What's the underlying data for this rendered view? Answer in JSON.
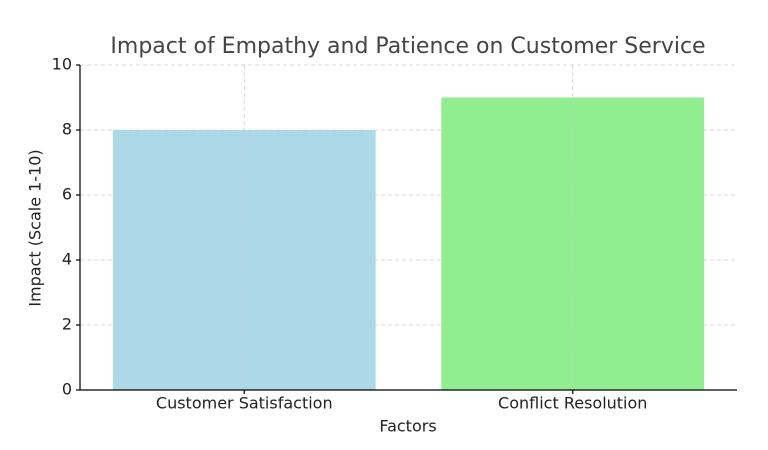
{
  "chart_data": {
    "type": "bar",
    "title": "Impact of Empathy and Patience on Customer Service",
    "x_label": "Factors",
    "y_label": "Impact (Scale 1-10)",
    "categories": [
      "Customer Satisfaction",
      "Conflict Resolution"
    ],
    "values": [
      8,
      9
    ],
    "colors": [
      "#add8e6",
      "#90ee90"
    ],
    "ylim": [
      0,
      10
    ],
    "yticks": [
      0,
      2,
      4,
      6,
      8,
      10
    ],
    "grid": true
  }
}
